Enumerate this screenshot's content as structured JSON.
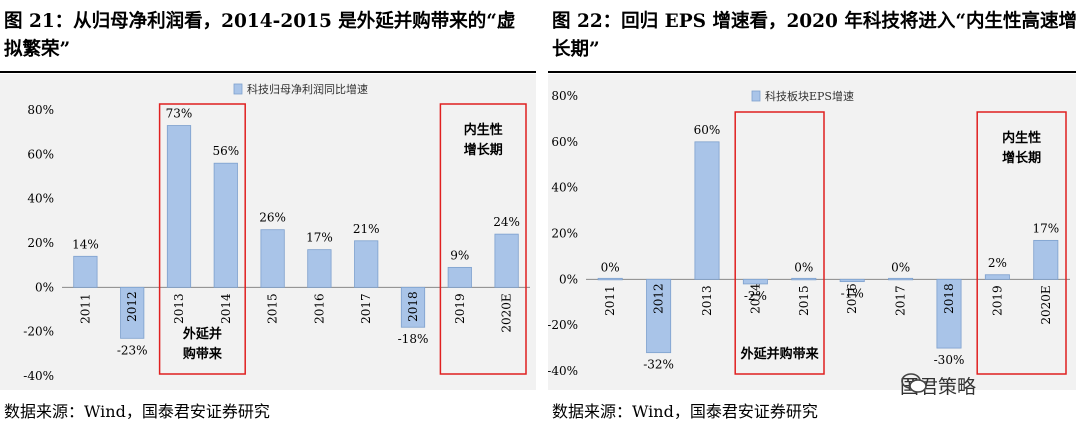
{
  "left": {
    "title": "图 21：从归母净利润看，2014-2015 是外延并购带来的“虚拟繁荣”",
    "source": "数据来源：Wind，国泰君安证券研究",
    "chart_data": {
      "type": "bar",
      "categories": [
        "2011",
        "2012",
        "2013",
        "2014",
        "2015",
        "2016",
        "2017",
        "2018",
        "2019",
        "2020E"
      ],
      "series": [
        {
          "name": "科技归母净利润同比增速",
          "values": [
            14,
            -23,
            73,
            56,
            26,
            17,
            21,
            -18,
            9,
            24
          ]
        }
      ],
      "value_labels": [
        "14%",
        "-23%",
        "73%",
        "56%",
        "26%",
        "17%",
        "21%",
        "-18%",
        "9%",
        "24%"
      ],
      "yticks": [
        "80%",
        "60%",
        "40%",
        "20%",
        "0%",
        "-20%",
        "-40%"
      ],
      "ylim": [
        -40,
        80
      ],
      "annotations": [
        {
          "lines": [
            "外延并",
            "购带来"
          ],
          "from": "2013",
          "to": "2014"
        },
        {
          "lines": [
            "内生性",
            "增长期"
          ],
          "from": "2019",
          "to": "2020E"
        }
      ],
      "colors": {
        "bar": "#a9c4e8",
        "bar_edge": "#7da0cd",
        "box": "#e02020"
      }
    }
  },
  "right": {
    "title": "图 22：回归 EPS 增速看，2020 年科技将进入“内生性高速增长期”",
    "source": "数据来源：Wind，国泰君安证券研究",
    "chart_data": {
      "type": "bar",
      "categories": [
        "2011",
        "2012",
        "2013",
        "2014",
        "2015",
        "2016",
        "2017",
        "2018",
        "2019",
        "2020E"
      ],
      "series": [
        {
          "name": "科技板块EPS增速",
          "values": [
            0,
            -32,
            60,
            -2,
            0,
            -1,
            0,
            -30,
            2,
            17
          ]
        }
      ],
      "value_labels": [
        "0%",
        "-32%",
        "60%",
        "-2%",
        "0%",
        "-1%",
        "0%",
        "-30%",
        "2%",
        "17%"
      ],
      "yticks": [
        "80%",
        "60%",
        "40%",
        "20%",
        "0%",
        "-20%",
        "-40%"
      ],
      "ylim": [
        -40,
        80
      ],
      "annotations": [
        {
          "lines": [
            "外延并购带来"
          ],
          "from": "2014",
          "to": "2015"
        },
        {
          "lines": [
            "内生性",
            "增长期"
          ],
          "from": "2019",
          "to": "2020E"
        }
      ],
      "colors": {
        "bar": "#a9c4e8",
        "bar_edge": "#7da0cd",
        "box": "#e02020"
      }
    }
  },
  "watermark": {
    "text": "国君策略",
    "icon": "wechat-icon"
  }
}
